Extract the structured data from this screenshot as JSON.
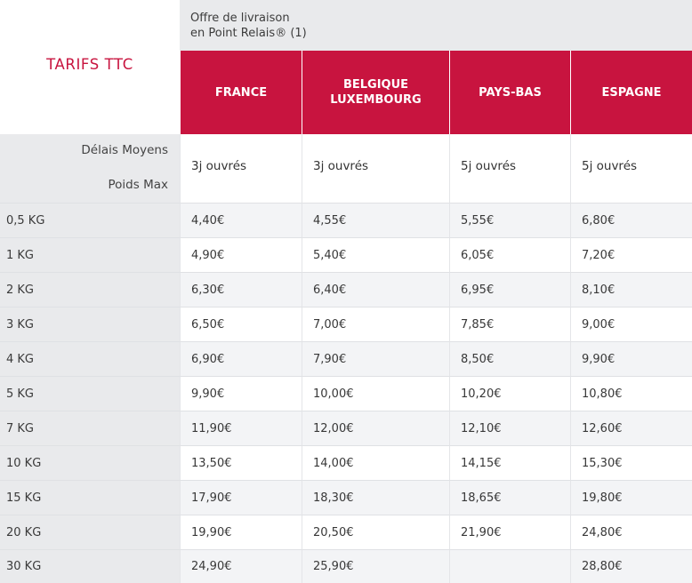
{
  "header": {
    "title": "TARIFS TTC",
    "offer_line1": "Offre de livraison",
    "offer_line2": "en Point Relais® (1)"
  },
  "columns": [
    {
      "label_line1": "FRANCE",
      "label_line2": ""
    },
    {
      "label_line1": "BELGIQUE",
      "label_line2": "LUXEMBOURG"
    },
    {
      "label_line1": "PAYS-BAS",
      "label_line2": ""
    },
    {
      "label_line1": "ESPAGNE",
      "label_line2": ""
    }
  ],
  "delays": {
    "label": "Délais Moyens",
    "weight_label": "Poids Max",
    "values": [
      "3j ouvrés",
      "3j ouvrés",
      "5j ouvrés",
      "5j ouvrés"
    ]
  },
  "rows": [
    {
      "weight": "0,5 KG",
      "prices": [
        "4,40€",
        "4,55€",
        "5,55€",
        "6,80€"
      ]
    },
    {
      "weight": "1 KG",
      "prices": [
        "4,90€",
        "5,40€",
        "6,05€",
        "7,20€"
      ]
    },
    {
      "weight": "2 KG",
      "prices": [
        "6,30€",
        "6,40€",
        "6,95€",
        "8,10€"
      ]
    },
    {
      "weight": "3 KG",
      "prices": [
        "6,50€",
        "7,00€",
        "7,85€",
        "9,00€"
      ]
    },
    {
      "weight": "4 KG",
      "prices": [
        "6,90€",
        "7,90€",
        "8,50€",
        "9,90€"
      ]
    },
    {
      "weight": "5 KG",
      "prices": [
        "9,90€",
        "10,00€",
        "10,20€",
        "10,80€"
      ]
    },
    {
      "weight": "7 KG",
      "prices": [
        "11,90€",
        "12,00€",
        "12,10€",
        "12,60€"
      ]
    },
    {
      "weight": "10 KG",
      "prices": [
        "13,50€",
        "14,00€",
        "14,15€",
        "15,30€"
      ]
    },
    {
      "weight": "15 KG",
      "prices": [
        "17,90€",
        "18,30€",
        "18,65€",
        "19,80€"
      ]
    },
    {
      "weight": "20 KG",
      "prices": [
        "19,90€",
        "20,50€",
        "21,90€",
        "24,80€"
      ]
    },
    {
      "weight": "30 KG",
      "prices": [
        "24,90€",
        "25,90€",
        "",
        "28,80€"
      ]
    }
  ],
  "colors": {
    "accent": "#c8143f",
    "header_gray": "#e9eaec",
    "row_alt": "#f3f4f6"
  }
}
